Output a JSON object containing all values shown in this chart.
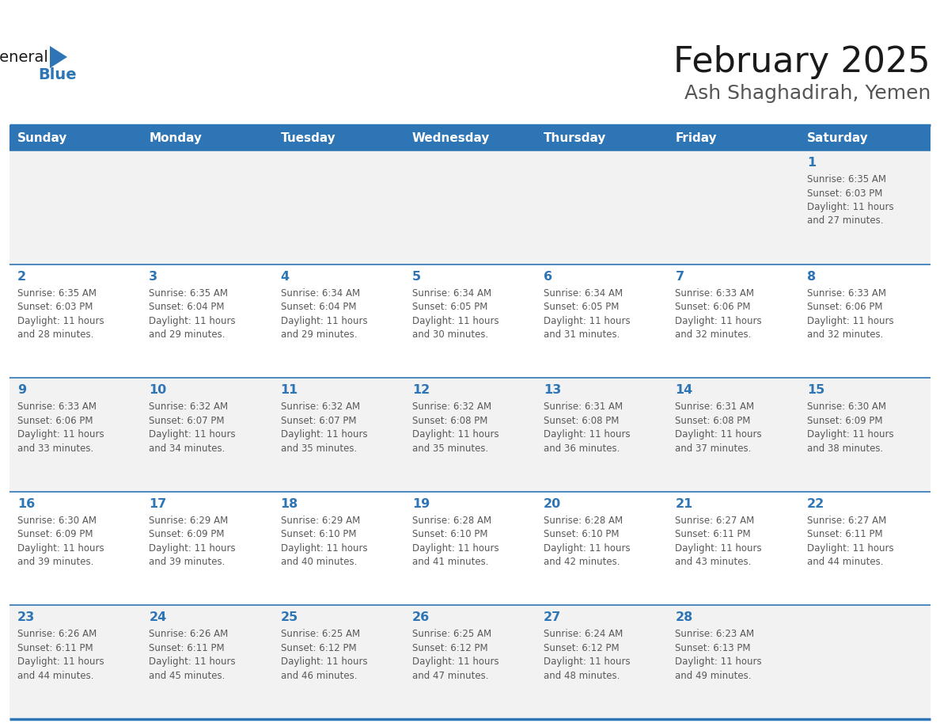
{
  "title": "February 2025",
  "subtitle": "Ash Shaghadirah, Yemen",
  "days_of_week": [
    "Sunday",
    "Monday",
    "Tuesday",
    "Wednesday",
    "Thursday",
    "Friday",
    "Saturday"
  ],
  "header_bg": "#2E75B6",
  "header_text_color": "#FFFFFF",
  "cell_bg_gray": "#F2F2F2",
  "cell_bg_white": "#FFFFFF",
  "line_color": "#2E75B6",
  "day_num_color": "#2E75B6",
  "text_color": "#595959",
  "title_color": "#1a1a1a",
  "subtitle_color": "#555555",
  "calendar_data": [
    [
      null,
      null,
      null,
      null,
      null,
      null,
      {
        "day": 1,
        "sunrise": "6:35 AM",
        "sunset": "6:03 PM",
        "daylight": "11 hours and 27 minutes."
      }
    ],
    [
      {
        "day": 2,
        "sunrise": "6:35 AM",
        "sunset": "6:03 PM",
        "daylight": "11 hours and 28 minutes."
      },
      {
        "day": 3,
        "sunrise": "6:35 AM",
        "sunset": "6:04 PM",
        "daylight": "11 hours and 29 minutes."
      },
      {
        "day": 4,
        "sunrise": "6:34 AM",
        "sunset": "6:04 PM",
        "daylight": "11 hours and 29 minutes."
      },
      {
        "day": 5,
        "sunrise": "6:34 AM",
        "sunset": "6:05 PM",
        "daylight": "11 hours and 30 minutes."
      },
      {
        "day": 6,
        "sunrise": "6:34 AM",
        "sunset": "6:05 PM",
        "daylight": "11 hours and 31 minutes."
      },
      {
        "day": 7,
        "sunrise": "6:33 AM",
        "sunset": "6:06 PM",
        "daylight": "11 hours and 32 minutes."
      },
      {
        "day": 8,
        "sunrise": "6:33 AM",
        "sunset": "6:06 PM",
        "daylight": "11 hours and 32 minutes."
      }
    ],
    [
      {
        "day": 9,
        "sunrise": "6:33 AM",
        "sunset": "6:06 PM",
        "daylight": "11 hours and 33 minutes."
      },
      {
        "day": 10,
        "sunrise": "6:32 AM",
        "sunset": "6:07 PM",
        "daylight": "11 hours and 34 minutes."
      },
      {
        "day": 11,
        "sunrise": "6:32 AM",
        "sunset": "6:07 PM",
        "daylight": "11 hours and 35 minutes."
      },
      {
        "day": 12,
        "sunrise": "6:32 AM",
        "sunset": "6:08 PM",
        "daylight": "11 hours and 35 minutes."
      },
      {
        "day": 13,
        "sunrise": "6:31 AM",
        "sunset": "6:08 PM",
        "daylight": "11 hours and 36 minutes."
      },
      {
        "day": 14,
        "sunrise": "6:31 AM",
        "sunset": "6:08 PM",
        "daylight": "11 hours and 37 minutes."
      },
      {
        "day": 15,
        "sunrise": "6:30 AM",
        "sunset": "6:09 PM",
        "daylight": "11 hours and 38 minutes."
      }
    ],
    [
      {
        "day": 16,
        "sunrise": "6:30 AM",
        "sunset": "6:09 PM",
        "daylight": "11 hours and 39 minutes."
      },
      {
        "day": 17,
        "sunrise": "6:29 AM",
        "sunset": "6:09 PM",
        "daylight": "11 hours and 39 minutes."
      },
      {
        "day": 18,
        "sunrise": "6:29 AM",
        "sunset": "6:10 PM",
        "daylight": "11 hours and 40 minutes."
      },
      {
        "day": 19,
        "sunrise": "6:28 AM",
        "sunset": "6:10 PM",
        "daylight": "11 hours and 41 minutes."
      },
      {
        "day": 20,
        "sunrise": "6:28 AM",
        "sunset": "6:10 PM",
        "daylight": "11 hours and 42 minutes."
      },
      {
        "day": 21,
        "sunrise": "6:27 AM",
        "sunset": "6:11 PM",
        "daylight": "11 hours and 43 minutes."
      },
      {
        "day": 22,
        "sunrise": "6:27 AM",
        "sunset": "6:11 PM",
        "daylight": "11 hours and 44 minutes."
      }
    ],
    [
      {
        "day": 23,
        "sunrise": "6:26 AM",
        "sunset": "6:11 PM",
        "daylight": "11 hours and 44 minutes."
      },
      {
        "day": 24,
        "sunrise": "6:26 AM",
        "sunset": "6:11 PM",
        "daylight": "11 hours and 45 minutes."
      },
      {
        "day": 25,
        "sunrise": "6:25 AM",
        "sunset": "6:12 PM",
        "daylight": "11 hours and 46 minutes."
      },
      {
        "day": 26,
        "sunrise": "6:25 AM",
        "sunset": "6:12 PM",
        "daylight": "11 hours and 47 minutes."
      },
      {
        "day": 27,
        "sunrise": "6:24 AM",
        "sunset": "6:12 PM",
        "daylight": "11 hours and 48 minutes."
      },
      {
        "day": 28,
        "sunrise": "6:23 AM",
        "sunset": "6:13 PM",
        "daylight": "11 hours and 49 minutes."
      },
      null
    ]
  ]
}
